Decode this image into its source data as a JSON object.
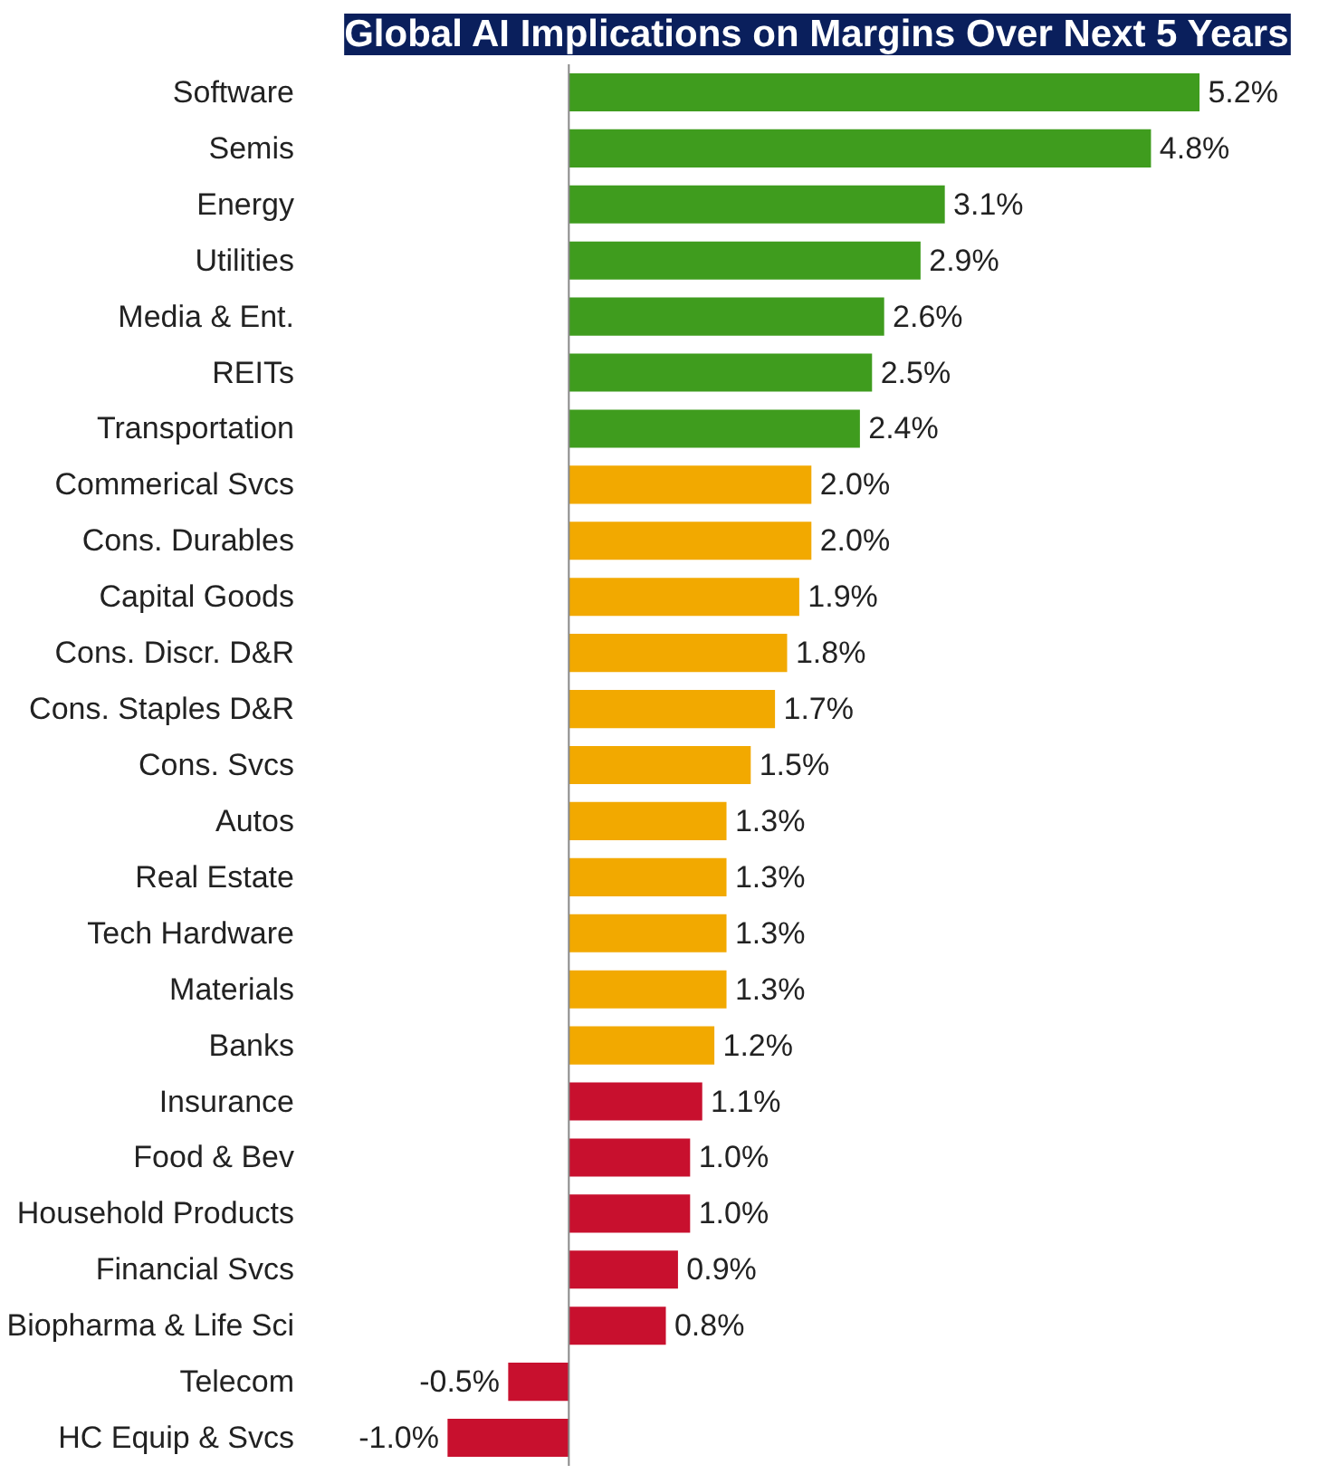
{
  "chart_data": {
    "type": "bar",
    "orientation": "horizontal",
    "title": "Global AI Implications on Margins Over Next 5 Years",
    "categories": [
      "Software",
      "Semis",
      "Energy",
      "Utilities",
      "Media & Ent.",
      "REITs",
      "Transportation",
      "Commerical Svcs",
      "Cons. Durables",
      "Capital Goods",
      "Cons. Discr. D&R",
      "Cons. Staples D&R",
      "Cons. Svcs",
      "Autos",
      "Real Estate",
      "Tech Hardware",
      "Materials",
      "Banks",
      "Insurance",
      "Food & Bev",
      "Household Products",
      "Financial Svcs",
      "Biopharma & Life Sci",
      "Telecom",
      "HC Equip & Svcs"
    ],
    "values": [
      5.2,
      4.8,
      3.1,
      2.9,
      2.6,
      2.5,
      2.4,
      2.0,
      2.0,
      1.9,
      1.8,
      1.7,
      1.5,
      1.3,
      1.3,
      1.3,
      1.3,
      1.2,
      1.1,
      1.0,
      1.0,
      0.9,
      0.8,
      -0.5,
      -1.0
    ],
    "value_labels": [
      "5.2%",
      "4.8%",
      "3.1%",
      "2.9%",
      "2.6%",
      "2.5%",
      "2.4%",
      "2.0%",
      "2.0%",
      "1.9%",
      "1.8%",
      "1.7%",
      "1.5%",
      "1.3%",
      "1.3%",
      "1.3%",
      "1.3%",
      "1.2%",
      "1.1%",
      "1.0%",
      "1.0%",
      "0.9%",
      "0.8%",
      "-0.5%",
      "-1.0%"
    ],
    "colors": [
      "#3f9c1e",
      "#3f9c1e",
      "#3f9c1e",
      "#3f9c1e",
      "#3f9c1e",
      "#3f9c1e",
      "#3f9c1e",
      "#f2a900",
      "#f2a900",
      "#f2a900",
      "#f2a900",
      "#f2a900",
      "#f2a900",
      "#f2a900",
      "#f2a900",
      "#f2a900",
      "#f2a900",
      "#f2a900",
      "#c8102e",
      "#c8102e",
      "#c8102e",
      "#c8102e",
      "#c8102e",
      "#c8102e",
      "#c8102e"
    ],
    "grid": false
  }
}
